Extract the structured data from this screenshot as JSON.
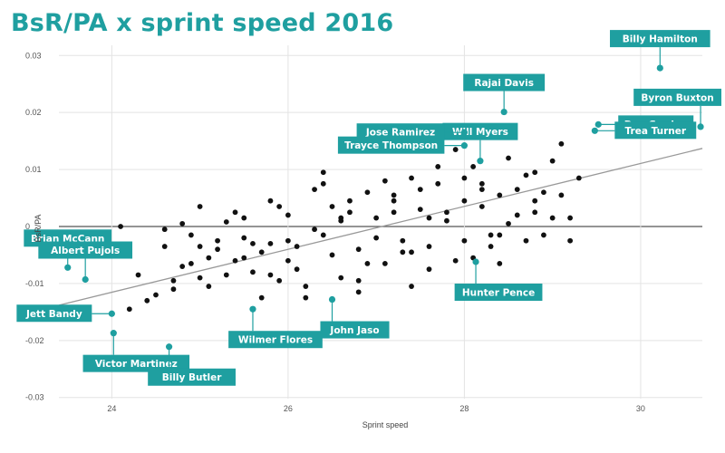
{
  "title": "BsR/PA x sprint speed 2016",
  "colors": {
    "accent": "#1f9fa0",
    "points": "#111111",
    "trend": "#999999",
    "grid": "#e3e3e3"
  },
  "chart_data": {
    "type": "scatter",
    "title": "BsR/PA x sprint speed 2016",
    "xlabel": "Sprint speed",
    "ylabel": "BsR/PA",
    "xlim": [
      23.4,
      30.7
    ],
    "ylim": [
      -0.0302,
      0.0302
    ],
    "x_ticks": [
      24,
      26,
      28,
      30
    ],
    "x_tick_labels": [
      "24",
      "26",
      "28",
      "30"
    ],
    "y_ticks": [
      0.03,
      0.02,
      0.01,
      0,
      -0.01,
      -0.02,
      -0.03
    ],
    "y_tick_labels": [
      "0.03",
      "0.02",
      "0.01",
      "0",
      "-0.01",
      "-0.02",
      "-0.03"
    ],
    "grid": true,
    "trendline": {
      "x": [
        23.4,
        30.7
      ],
      "y": [
        -0.0138,
        0.0137
      ]
    },
    "highlighted": [
      {
        "name": "Billy Hamilton",
        "x": 30.22,
        "y": 0.0278,
        "label_anchor": "above"
      },
      {
        "name": "Byron Buxton",
        "x": 30.68,
        "y": 0.0175,
        "label_anchor": "above"
      },
      {
        "name": "Dee Gordon",
        "x": 29.52,
        "y": 0.0179,
        "label_anchor": "right"
      },
      {
        "name": "Trea Turner",
        "x": 29.48,
        "y": 0.0168,
        "label_anchor": "right"
      },
      {
        "name": "Rajai Davis",
        "x": 28.45,
        "y": 0.0201,
        "label_anchor": "above"
      },
      {
        "name": "Will Myers",
        "x": 28.18,
        "y": 0.0115,
        "label_anchor": "above"
      },
      {
        "name": "Jose Ramirez",
        "x": 28.0,
        "y": 0.0165,
        "label_anchor": "left"
      },
      {
        "name": "Trayce Thompson",
        "x": 28.0,
        "y": 0.0142,
        "label_anchor": "left"
      },
      {
        "name": "Hunter Pence",
        "x": 28.13,
        "y": -0.0062,
        "label_anchor": "below"
      },
      {
        "name": "John Jaso",
        "x": 26.5,
        "y": -0.0128,
        "label_anchor": "below"
      },
      {
        "name": "Wilmer Flores",
        "x": 25.6,
        "y": -0.0145,
        "label_anchor": "below"
      },
      {
        "name": "Brian McCann",
        "x": 23.5,
        "y": -0.0072,
        "label_anchor": "above"
      },
      {
        "name": "Albert Pujols",
        "x": 23.7,
        "y": -0.0093,
        "label_anchor": "above"
      },
      {
        "name": "Jett Bandy",
        "x": 24.0,
        "y": -0.0153,
        "label_anchor": "left"
      },
      {
        "name": "Victor Martinez",
        "x": 24.02,
        "y": -0.0187,
        "label_anchor": "below"
      },
      {
        "name": "Billy Butler",
        "x": 24.65,
        "y": -0.0211,
        "label_anchor": "below"
      }
    ],
    "x": [
      24.1,
      24.3,
      24.5,
      24.6,
      24.7,
      24.8,
      24.9,
      25.0,
      25.1,
      25.2,
      25.3,
      25.4,
      25.5,
      25.6,
      25.7,
      25.8,
      25.9,
      26.0,
      26.0,
      26.1,
      26.2,
      26.3,
      26.4,
      26.5,
      26.6,
      26.7,
      26.8,
      26.9,
      27.0,
      27.1,
      27.2,
      27.3,
      27.4,
      27.5,
      27.6,
      27.7,
      27.8,
      27.9,
      28.0,
      28.1,
      28.2,
      28.3,
      28.4,
      28.5,
      28.6,
      28.7,
      28.8,
      28.9,
      29.0,
      29.1,
      29.2,
      29.3,
      24.4,
      24.6,
      24.7,
      24.9,
      25.0,
      25.2,
      25.3,
      25.5,
      25.7,
      25.8,
      26.1,
      26.3,
      26.4,
      26.6,
      26.8,
      27.0,
      27.1,
      27.3,
      27.5,
      27.6,
      27.8,
      27.9,
      28.1,
      28.3,
      28.5,
      28.7,
      28.9,
      29.1,
      25.1,
      25.4,
      25.6,
      25.9,
      26.2,
      26.5,
      26.7,
      26.9,
      27.2,
      27.4,
      27.7,
      28.0,
      28.2,
      28.4,
      28.6,
      28.8,
      24.8,
      25.5,
      26.0,
      26.4,
      26.8,
      27.2,
      27.6,
      28.0,
      28.4,
      28.8,
      29.2,
      24.2,
      25.0,
      25.8,
      26.6,
      27.4,
      28.2,
      29.0
    ],
    "y": [
      0.0,
      -0.0085,
      -0.012,
      -0.0005,
      -0.011,
      -0.007,
      -0.0015,
      -0.009,
      -0.0055,
      -0.004,
      0.0008,
      -0.006,
      -0.002,
      -0.008,
      -0.0125,
      -0.003,
      -0.0095,
      -0.006,
      0.002,
      -0.0035,
      -0.0105,
      0.0065,
      -0.0015,
      0.0035,
      -0.009,
      0.0025,
      -0.004,
      0.006,
      0.0015,
      -0.0065,
      0.0045,
      -0.0025,
      0.0085,
      0.003,
      -0.0035,
      0.0105,
      0.0025,
      0.0135,
      0.0045,
      -0.0055,
      0.0075,
      -0.0015,
      0.0055,
      0.012,
      0.002,
      -0.0025,
      0.0095,
      0.006,
      0.0015,
      0.0145,
      -0.0025,
      0.0085,
      -0.013,
      -0.0035,
      -0.0095,
      -0.0065,
      0.0035,
      -0.0025,
      -0.0085,
      0.0015,
      -0.0045,
      0.0045,
      -0.0075,
      -0.0005,
      0.0075,
      0.001,
      -0.0095,
      -0.002,
      0.008,
      -0.0045,
      0.0065,
      -0.0075,
      0.001,
      -0.006,
      0.0105,
      -0.0035,
      0.0005,
      0.009,
      -0.0015,
      0.0055,
      -0.0105,
      0.0025,
      -0.003,
      0.0035,
      -0.0125,
      -0.005,
      0.0045,
      -0.0065,
      0.0025,
      -0.0105,
      0.0075,
      -0.0025,
      0.0035,
      -0.0065,
      0.0065,
      0.0025,
      0.0005,
      -0.0055,
      -0.0025,
      0.0095,
      -0.0115,
      0.0055,
      0.0015,
      0.0085,
      -0.0015,
      0.0045,
      0.0015,
      -0.0145,
      -0.0035,
      -0.0085,
      0.0015,
      -0.0045,
      0.0065,
      0.0115
    ]
  }
}
